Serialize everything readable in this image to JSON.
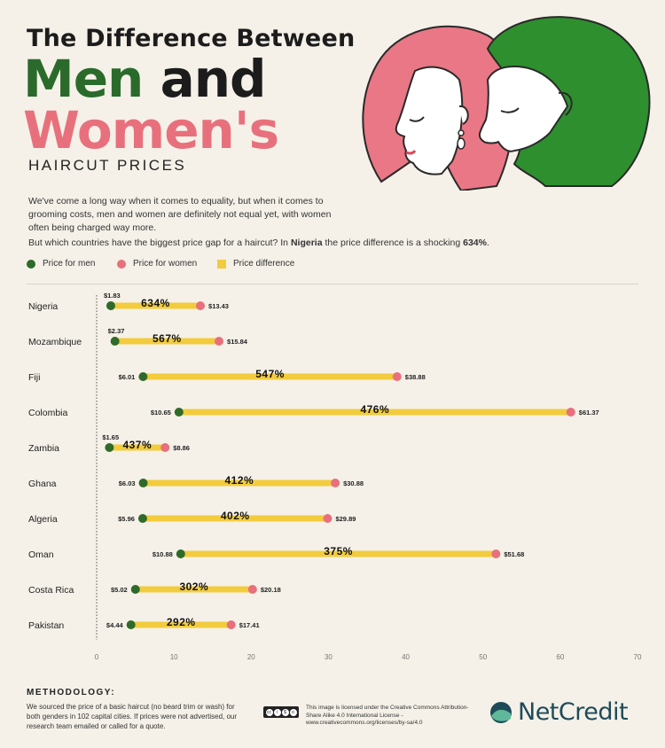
{
  "title": {
    "line1": "The Difference Between",
    "men": "Men",
    "and": "and",
    "women": "Women's",
    "subtitle": "HAIRCUT PRICES"
  },
  "intro": {
    "paragraph1": "We've come a long way when it comes to equality, but when it comes to grooming costs, men and women are definitely not equal yet, with women often being charged way more.",
    "p2_lead": "But which countries have the biggest price gap for a haircut? In ",
    "p2_country": "Nigeria",
    "p2_mid": " the price difference is a shocking ",
    "p2_value": "634%",
    "p2_end": "."
  },
  "legend": {
    "men": "Price for men",
    "women": "Price for women",
    "difference": "Price difference"
  },
  "colors": {
    "men": "#2f6a2a",
    "women": "#e8707c",
    "difference": "#f2cc3d",
    "title_green": "#2a6b2c",
    "title_pink": "#e8707c",
    "brand": "#1f4b59"
  },
  "chart_data": {
    "type": "dumbbell",
    "x_axis": {
      "min": 0,
      "max": 70,
      "ticks": [
        "0",
        "10",
        "20",
        "30",
        "40",
        "50",
        "60",
        "70"
      ]
    },
    "rows": [
      {
        "country": "Nigeria",
        "men": 1.83,
        "women": 13.43,
        "men_label": "$1.83",
        "women_label": "$13.43",
        "diff_label": "634%"
      },
      {
        "country": "Mozambique",
        "men": 2.37,
        "women": 15.84,
        "men_label": "$2.37",
        "women_label": "$15.84",
        "diff_label": "567%"
      },
      {
        "country": "Fiji",
        "men": 6.01,
        "women": 38.88,
        "men_label": "$6.01",
        "women_label": "$38.88",
        "diff_label": "547%"
      },
      {
        "country": "Colombia",
        "men": 10.65,
        "women": 61.37,
        "men_label": "$10.65",
        "women_label": "$61.37",
        "diff_label": "476%"
      },
      {
        "country": "Zambia",
        "men": 1.65,
        "women": 8.86,
        "men_label": "$1.65",
        "women_label": "$8.86",
        "diff_label": "437%"
      },
      {
        "country": "Ghana",
        "men": 6.03,
        "women": 30.88,
        "men_label": "$6.03",
        "women_label": "$30.88",
        "diff_label": "412%"
      },
      {
        "country": "Algeria",
        "men": 5.96,
        "women": 29.89,
        "men_label": "$5.96",
        "women_label": "$29.89",
        "diff_label": "402%"
      },
      {
        "country": "Oman",
        "men": 10.88,
        "women": 51.68,
        "men_label": "$10.88",
        "women_label": "$51.68",
        "diff_label": "375%"
      },
      {
        "country": "Costa Rica",
        "men": 5.02,
        "women": 20.18,
        "men_label": "$5.02",
        "women_label": "$20.18",
        "diff_label": "302%"
      },
      {
        "country": "Pakistan",
        "men": 4.44,
        "women": 17.41,
        "men_label": "$4.44",
        "women_label": "$17.41",
        "diff_label": "292%"
      }
    ]
  },
  "methodology": {
    "title": "METHODOLOGY:",
    "text": "We sourced the price of a basic haircut (no beard trim or wash) for both genders in 102 capital cities. If prices were not advertised, our research team emailed or called for a quote."
  },
  "license": {
    "text": "This image is licensed under the Creative Commons Attribution-Share Alike 4.0 International License - www.creativecommons.org/licenses/by-sa/4.0"
  },
  "brand": {
    "name": "NetCredit"
  },
  "icons": {
    "logo": "netcredit-logo-icon",
    "cc": "creative-commons-icon",
    "illustration": "couple-illustration"
  }
}
